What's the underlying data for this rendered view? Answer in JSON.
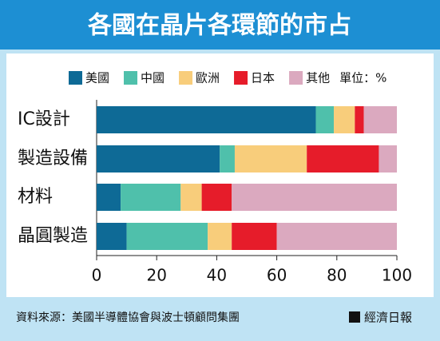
{
  "chart_data": {
    "type": "barh",
    "stacked": true,
    "title": "各國在晶片各環節的市占",
    "unit_label": "單位：%",
    "categories": [
      "IC設計",
      "製造設備",
      "材料",
      "晶圓製造"
    ],
    "series": [
      {
        "name": "美國",
        "color": "#0e6a96",
        "values": [
          73,
          41,
          8,
          10
        ]
      },
      {
        "name": "中國",
        "color": "#4fc0ab",
        "values": [
          6,
          5,
          20,
          27
        ]
      },
      {
        "name": "歐洲",
        "color": "#f8cd7b",
        "values": [
          7,
          24,
          7,
          8
        ]
      },
      {
        "name": "日本",
        "color": "#e61c2a",
        "values": [
          3,
          24,
          10,
          15
        ]
      },
      {
        "name": "其他",
        "color": "#dba9bf",
        "values": [
          11,
          6,
          55,
          40
        ]
      }
    ],
    "xlim": [
      0,
      100
    ],
    "xticks": [
      0,
      20,
      40,
      60,
      80,
      100
    ],
    "grid": false,
    "source": "資料來源：美國半導體協會與波士頓顧問集團",
    "publisher": "經濟日報"
  }
}
